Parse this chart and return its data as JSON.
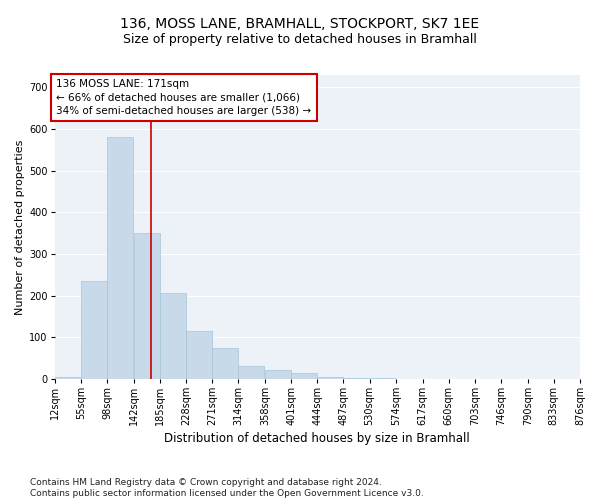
{
  "title": "136, MOSS LANE, BRAMHALL, STOCKPORT, SK7 1EE",
  "subtitle": "Size of property relative to detached houses in Bramhall",
  "xlabel": "Distribution of detached houses by size in Bramhall",
  "ylabel": "Number of detached properties",
  "bin_edges": [
    12,
    55,
    98,
    142,
    185,
    228,
    271,
    314,
    358,
    401,
    444,
    487,
    530,
    574,
    617,
    660,
    703,
    746,
    790,
    833,
    876
  ],
  "bar_heights": [
    5,
    235,
    580,
    350,
    205,
    115,
    73,
    30,
    20,
    13,
    5,
    2,
    1,
    0,
    0,
    0,
    0,
    0,
    0,
    0
  ],
  "bar_color": "#c8d9ea",
  "bar_edgecolor": "#a8c4d8",
  "bar_linewidth": 0.5,
  "vline_x": 171,
  "vline_color": "#cc0000",
  "vline_linewidth": 1.2,
  "annotation_text": "136 MOSS LANE: 171sqm\n← 66% of detached houses are smaller (1,066)\n34% of semi-detached houses are larger (538) →",
  "annotation_box_color": "#cc0000",
  "ylim": [
    0,
    730
  ],
  "yticks": [
    0,
    100,
    200,
    300,
    400,
    500,
    600,
    700
  ],
  "bg_color": "#edf2f9",
  "grid_color": "#ffffff",
  "footnote": "Contains HM Land Registry data © Crown copyright and database right 2024.\nContains public sector information licensed under the Open Government Licence v3.0.",
  "title_fontsize": 10,
  "subtitle_fontsize": 9,
  "xlabel_fontsize": 8.5,
  "ylabel_fontsize": 8,
  "tick_fontsize": 7,
  "annot_fontsize": 7.5,
  "footnote_fontsize": 6.5
}
